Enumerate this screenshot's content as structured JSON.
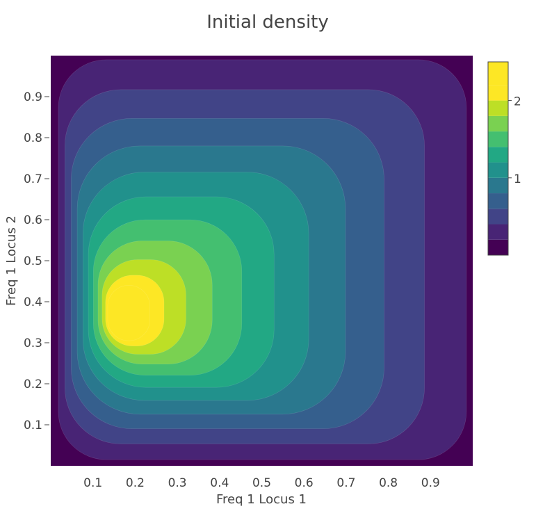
{
  "chart_data": {
    "type": "contour",
    "title": "Initial density",
    "xlabel": "Freq 1 Locus 1",
    "ylabel": "Freq 1 Locus 2",
    "xlim": [
      0,
      1
    ],
    "ylim": [
      0,
      1
    ],
    "x_ticks": [
      "0.1",
      "0.2",
      "0.3",
      "0.4",
      "0.5",
      "0.6",
      "0.7",
      "0.8",
      "0.9"
    ],
    "y_ticks": [
      "0.1",
      "0.2",
      "0.3",
      "0.4",
      "0.5",
      "0.6",
      "0.7",
      "0.8",
      "0.9"
    ],
    "x_tick_values": [
      0.1,
      0.2,
      0.3,
      0.4,
      0.5,
      0.6,
      0.7,
      0.8,
      0.9
    ],
    "y_tick_values": [
      0.1,
      0.2,
      0.3,
      0.4,
      0.5,
      0.6,
      0.7,
      0.8,
      0.9
    ],
    "peak": {
      "x": 0.2,
      "y": 0.37,
      "value": 2.45
    },
    "contour_levels": [
      0.2,
      0.4,
      0.6,
      0.8,
      1.0,
      1.2,
      1.4,
      1.6,
      1.8,
      2.0,
      2.2
    ],
    "colorscale": "Viridis",
    "colorbar": {
      "range": [
        0,
        2.5
      ],
      "ticks": [
        "1",
        "2"
      ],
      "tick_values": [
        1,
        2
      ]
    },
    "grid": false,
    "legend": "none"
  },
  "colors": {
    "viridis": [
      "#440154",
      "#482475",
      "#414487",
      "#355f8d",
      "#2a788e",
      "#21918c",
      "#22a884",
      "#44bf70",
      "#7ad151",
      "#bddf26",
      "#fde725"
    ]
  }
}
